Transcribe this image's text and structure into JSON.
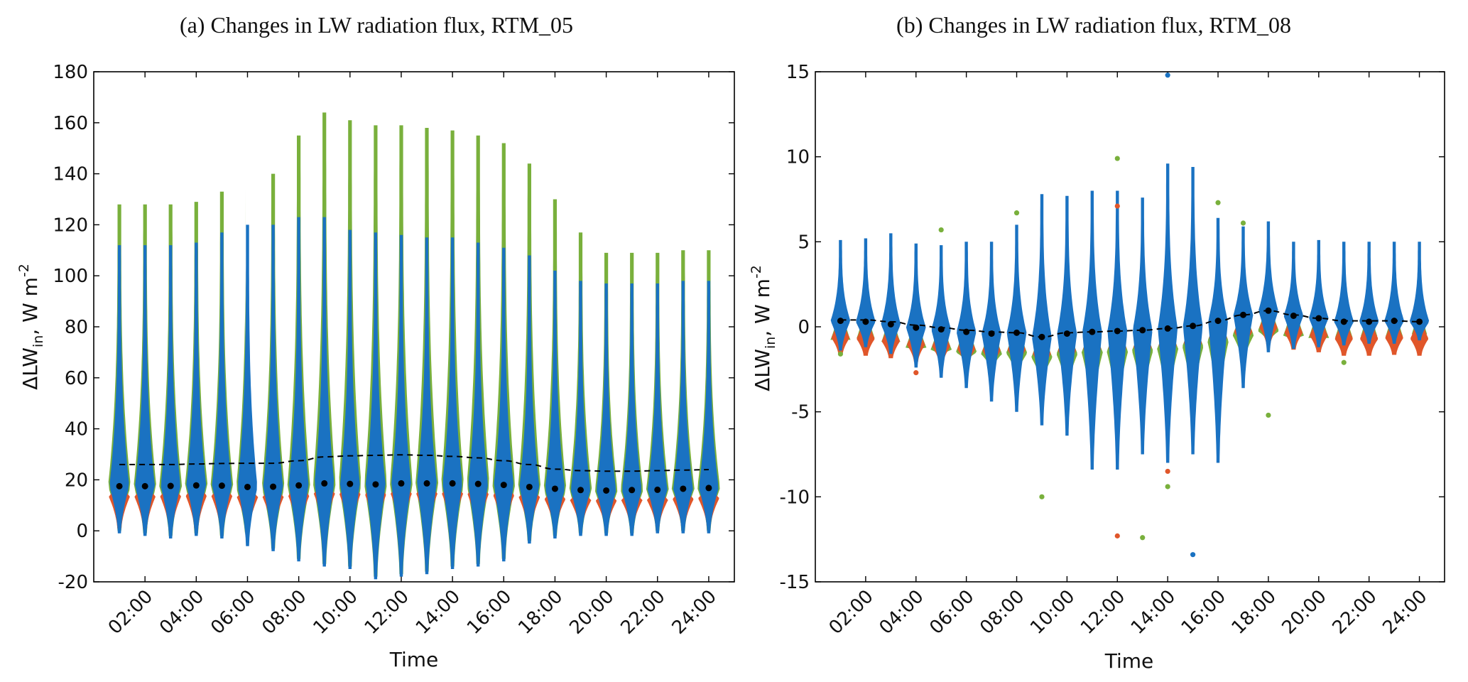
{
  "chart_data": [
    {
      "type": "violin",
      "title": "(a) Changes in LW radiation flux, RTM_05",
      "xlabel": "Time",
      "ylabel_main": "ΔLW",
      "ylabel_sub": "in",
      "ylabel_unit": ", W m",
      "ylabel_exp": "-2",
      "ylim": [
        -20,
        180
      ],
      "yticks": [
        -20,
        0,
        20,
        40,
        60,
        80,
        100,
        120,
        140,
        160,
        180
      ],
      "ytick_labels": [
        "-20",
        "0",
        "20",
        "40",
        "60",
        "80",
        "100",
        "120",
        "140",
        "160",
        "180"
      ],
      "xlim": [
        0,
        25
      ],
      "x": [
        1,
        2,
        3,
        4,
        5,
        6,
        7,
        8,
        9,
        10,
        11,
        12,
        13,
        14,
        15,
        16,
        17,
        18,
        19,
        20,
        21,
        22,
        23,
        24
      ],
      "xticks": [
        2,
        4,
        6,
        8,
        10,
        12,
        14,
        16,
        18,
        20,
        22,
        24
      ],
      "xtick_labels": [
        "02:00",
        "04:00",
        "06:00",
        "08:00",
        "10:00",
        "12:00",
        "14:00",
        "16:00",
        "18:00",
        "20:00",
        "22:00",
        "24:00"
      ],
      "median": [
        17.5,
        17.5,
        17.6,
        17.8,
        17.7,
        17.2,
        17.3,
        17.8,
        18.6,
        18.4,
        18.2,
        18.6,
        18.6,
        18.6,
        18.4,
        18.0,
        17.2,
        16.5,
        16.0,
        15.8,
        16.0,
        16.1,
        16.5,
        16.8
      ],
      "mean": [
        26,
        26,
        26,
        26.2,
        26.4,
        26.5,
        26.5,
        27.5,
        29.0,
        29.4,
        29.6,
        29.8,
        29.6,
        29.2,
        28.6,
        27.5,
        26.0,
        24.2,
        23.6,
        23.4,
        23.4,
        23.6,
        23.8,
        24.0
      ],
      "max_blue": [
        112,
        112,
        112,
        113,
        117,
        120,
        120,
        123,
        123,
        118,
        117,
        116,
        115,
        115,
        113,
        111,
        108,
        102,
        98,
        97,
        97,
        97,
        98,
        98
      ],
      "max_green": [
        128,
        128,
        128,
        129,
        133,
        134,
        140,
        155,
        164,
        161,
        159,
        159,
        158,
        157,
        155,
        152,
        144,
        130,
        117,
        109,
        109,
        109,
        110,
        110
      ],
      "min_blue": [
        -1,
        -2,
        -3,
        -2,
        -3,
        -6,
        -8,
        -12,
        -14,
        -15,
        -19,
        -18,
        -17,
        -15,
        -14,
        -12,
        -5,
        -3,
        -2,
        -2,
        -2,
        -1,
        -1,
        -1
      ],
      "min_orange": [
        1,
        1,
        1,
        1,
        1,
        1,
        1,
        1,
        1,
        1,
        1,
        1,
        1,
        1,
        1,
        1,
        1,
        2,
        2,
        2,
        2,
        2,
        2,
        2
      ]
    },
    {
      "type": "violin",
      "title": "(b) Changes in LW radiation flux, RTM_08",
      "xlabel": "Time",
      "ylabel_main": "ΔLW",
      "ylabel_sub": "in",
      "ylabel_unit": ", W m",
      "ylabel_exp": "-2",
      "ylim": [
        -15,
        15
      ],
      "yticks": [
        -15,
        -10,
        -5,
        0,
        5,
        10,
        15
      ],
      "ytick_labels": [
        "-15",
        "-10",
        "-5",
        "0",
        "5",
        "10",
        "15"
      ],
      "xlim": [
        0,
        25
      ],
      "x": [
        1,
        2,
        3,
        4,
        5,
        6,
        7,
        8,
        9,
        10,
        11,
        12,
        13,
        14,
        15,
        16,
        17,
        18,
        19,
        20,
        21,
        22,
        23,
        24
      ],
      "xticks": [
        2,
        4,
        6,
        8,
        10,
        12,
        14,
        16,
        18,
        20,
        22,
        24
      ],
      "xtick_labels": [
        "02:00",
        "04:00",
        "06:00",
        "08:00",
        "10:00",
        "12:00",
        "14:00",
        "16:00",
        "18:00",
        "20:00",
        "22:00",
        "24:00"
      ],
      "median": [
        0.35,
        0.3,
        0.15,
        -0.05,
        -0.15,
        -0.3,
        -0.4,
        -0.35,
        -0.6,
        -0.4,
        -0.3,
        -0.25,
        -0.2,
        -0.1,
        0.05,
        0.35,
        0.7,
        0.95,
        0.65,
        0.5,
        0.3,
        0.3,
        0.35,
        0.3
      ],
      "mean": [
        0.4,
        0.4,
        0.3,
        0.1,
        -0.05,
        -0.2,
        -0.3,
        -0.35,
        -0.6,
        -0.35,
        -0.3,
        -0.25,
        -0.2,
        -0.1,
        0.05,
        0.35,
        0.7,
        0.95,
        0.7,
        0.5,
        0.35,
        0.35,
        0.35,
        0.3
      ],
      "max_blue": [
        5.1,
        5.2,
        5.5,
        4.9,
        4.8,
        5.0,
        5.0,
        6.0,
        7.8,
        7.7,
        8.0,
        8.0,
        7.6,
        9.6,
        9.4,
        6.4,
        5.9,
        6.2,
        5.0,
        5.1,
        5.0,
        5.0,
        5.0,
        5.0
      ],
      "min_blue": [
        -1.4,
        -1.2,
        -1.6,
        -2.4,
        -3.0,
        -3.6,
        -4.4,
        -5.0,
        -5.8,
        -6.4,
        -8.4,
        -8.4,
        -7.5,
        -8.0,
        -7.5,
        -8.0,
        -3.6,
        -1.5,
        -1.3,
        -1.2,
        -1.1,
        -1.0,
        -1.0,
        -0.8
      ],
      "outliers_green": [
        [
          1,
          -1.6
        ],
        [
          5,
          5.7
        ],
        [
          8,
          6.7
        ],
        [
          9,
          -10.0
        ],
        [
          13,
          -12.4
        ],
        [
          14,
          -9.4
        ],
        [
          16,
          7.3
        ],
        [
          17,
          6.1
        ],
        [
          18,
          -5.2
        ],
        [
          21,
          -2.1
        ],
        [
          12,
          9.9
        ]
      ],
      "outliers_orange": [
        [
          4,
          -2.7
        ],
        [
          12,
          -12.3
        ],
        [
          14,
          -8.5
        ],
        [
          12,
          7.1
        ]
      ],
      "outliers_blue": [
        [
          14,
          14.8
        ],
        [
          15,
          -13.4
        ]
      ]
    }
  ],
  "colors": {
    "blue": "#1a72c2",
    "green": "#79b03c",
    "orange": "#e0562a",
    "median": "#000000",
    "mean_line": "#000000"
  }
}
